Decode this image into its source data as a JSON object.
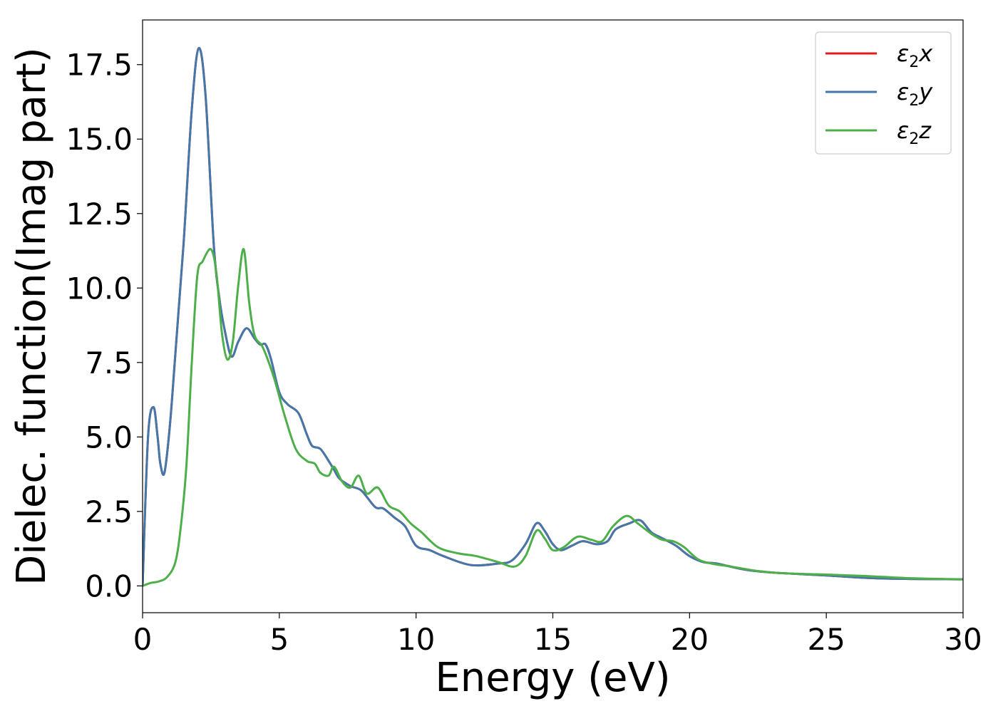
{
  "chart_data": {
    "type": "line",
    "title": "",
    "xlabel": "Energy (eV)",
    "ylabel": "Dielec. function(Imag part)",
    "xlim": [
      0,
      30
    ],
    "ylim": [
      -0.9,
      19.0
    ],
    "xticks": [
      0,
      5,
      10,
      15,
      20,
      25,
      30
    ],
    "xtick_labels": [
      "0",
      "5",
      "10",
      "15",
      "20",
      "25",
      "30"
    ],
    "yticks": [
      0.0,
      2.5,
      5.0,
      7.5,
      10.0,
      12.5,
      15.0,
      17.5
    ],
    "ytick_labels": [
      "0.0",
      "2.5",
      "5.0",
      "7.5",
      "10.0",
      "12.5",
      "15.0",
      "17.5"
    ],
    "grid": false,
    "legend_position": "top-right",
    "series": [
      {
        "name": "ε₂x",
        "legend_base": "ε",
        "legend_sub": "2",
        "legend_tail": "x",
        "color": "#e41a1c",
        "x": [
          0.0,
          0.2,
          0.4,
          0.55,
          0.65,
          0.8,
          1.0,
          1.2,
          1.5,
          1.8,
          2.05,
          2.3,
          2.6,
          2.8,
          3.0,
          3.25,
          3.5,
          3.8,
          4.1,
          4.3,
          4.5,
          4.7,
          5.0,
          5.3,
          5.7,
          6.0,
          6.2,
          6.5,
          6.8,
          7.0,
          7.2,
          7.6,
          8.0,
          8.5,
          8.8,
          9.2,
          9.6,
          10.0,
          10.5,
          11.0,
          12.0,
          13.0,
          13.5,
          14.0,
          14.4,
          14.7,
          15.0,
          15.3,
          15.7,
          16.1,
          16.6,
          17.0,
          17.3,
          17.8,
          18.2,
          18.6,
          19.0,
          19.5,
          20.0,
          20.5,
          21.0,
          22.0,
          23.0,
          25.0,
          27.0,
          30.0
        ],
        "y": [
          0.0,
          5.0,
          6.0,
          5.0,
          4.1,
          3.8,
          5.4,
          7.8,
          11.5,
          16.0,
          18.05,
          16.5,
          11.5,
          9.7,
          8.6,
          7.7,
          8.2,
          8.65,
          8.3,
          8.1,
          8.1,
          7.6,
          6.5,
          6.1,
          5.8,
          5.1,
          4.7,
          4.6,
          4.2,
          3.9,
          3.6,
          3.35,
          3.2,
          2.65,
          2.6,
          2.3,
          2.0,
          1.35,
          1.2,
          1.0,
          0.7,
          0.75,
          0.85,
          1.4,
          2.1,
          1.85,
          1.4,
          1.2,
          1.35,
          1.5,
          1.4,
          1.5,
          1.9,
          2.1,
          2.2,
          1.8,
          1.6,
          1.35,
          1.0,
          0.8,
          0.75,
          0.55,
          0.45,
          0.35,
          0.25,
          0.22
        ]
      },
      {
        "name": "ε₂y",
        "legend_base": "ε",
        "legend_sub": "2",
        "legend_tail": "y",
        "color": "#4477aa",
        "x": [
          0.0,
          0.2,
          0.4,
          0.55,
          0.65,
          0.8,
          1.0,
          1.2,
          1.5,
          1.8,
          2.05,
          2.3,
          2.6,
          2.8,
          3.0,
          3.25,
          3.5,
          3.8,
          4.1,
          4.3,
          4.5,
          4.7,
          5.0,
          5.3,
          5.7,
          6.0,
          6.2,
          6.5,
          6.8,
          7.0,
          7.2,
          7.6,
          8.0,
          8.5,
          8.8,
          9.2,
          9.6,
          10.0,
          10.5,
          11.0,
          12.0,
          13.0,
          13.5,
          14.0,
          14.4,
          14.7,
          15.0,
          15.3,
          15.7,
          16.1,
          16.6,
          17.0,
          17.3,
          17.8,
          18.2,
          18.6,
          19.0,
          19.5,
          20.0,
          20.5,
          21.0,
          22.0,
          23.0,
          25.0,
          27.0,
          30.0
        ],
        "y": [
          0.0,
          5.0,
          6.0,
          5.0,
          4.1,
          3.8,
          5.4,
          7.8,
          11.5,
          16.0,
          18.05,
          16.5,
          11.5,
          9.7,
          8.6,
          7.7,
          8.2,
          8.65,
          8.3,
          8.1,
          8.1,
          7.6,
          6.5,
          6.1,
          5.8,
          5.1,
          4.7,
          4.6,
          4.2,
          3.9,
          3.6,
          3.35,
          3.2,
          2.65,
          2.6,
          2.3,
          2.0,
          1.35,
          1.2,
          1.0,
          0.7,
          0.75,
          0.85,
          1.4,
          2.1,
          1.85,
          1.4,
          1.2,
          1.35,
          1.5,
          1.4,
          1.5,
          1.9,
          2.1,
          2.2,
          1.8,
          1.6,
          1.35,
          1.0,
          0.8,
          0.75,
          0.55,
          0.45,
          0.35,
          0.25,
          0.22
        ]
      },
      {
        "name": "ε₂z",
        "legend_base": "ε",
        "legend_sub": "2",
        "legend_tail": "z",
        "color": "#4daf4a",
        "x": [
          0.0,
          0.3,
          0.6,
          0.9,
          1.2,
          1.4,
          1.6,
          1.8,
          2.0,
          2.2,
          2.5,
          2.7,
          2.9,
          3.1,
          3.3,
          3.5,
          3.7,
          3.9,
          4.1,
          4.4,
          4.8,
          5.2,
          5.6,
          6.0,
          6.3,
          6.5,
          6.8,
          7.0,
          7.3,
          7.6,
          7.9,
          8.2,
          8.6,
          9.0,
          9.4,
          9.8,
          10.2,
          10.8,
          11.5,
          12.2,
          13.0,
          13.6,
          14.0,
          14.4,
          14.7,
          15.0,
          15.4,
          15.9,
          16.4,
          16.8,
          17.2,
          17.7,
          18.1,
          18.6,
          19.0,
          19.4,
          19.8,
          20.3,
          20.8,
          21.5,
          22.5,
          23.5,
          25.0,
          26.5,
          28.0,
          30.0
        ],
        "y": [
          0.0,
          0.1,
          0.15,
          0.3,
          0.8,
          2.0,
          4.0,
          7.5,
          10.4,
          10.9,
          11.3,
          10.5,
          8.5,
          7.6,
          8.2,
          10.1,
          11.3,
          9.5,
          8.4,
          8.0,
          7.0,
          5.7,
          4.6,
          4.2,
          4.1,
          3.8,
          3.7,
          4.0,
          3.5,
          3.3,
          3.7,
          3.1,
          3.3,
          2.7,
          2.5,
          2.1,
          1.8,
          1.3,
          1.1,
          1.0,
          0.8,
          0.65,
          1.0,
          1.85,
          1.6,
          1.2,
          1.3,
          1.65,
          1.55,
          1.5,
          2.0,
          2.35,
          2.1,
          1.75,
          1.55,
          1.5,
          1.3,
          0.9,
          0.75,
          0.65,
          0.5,
          0.42,
          0.38,
          0.33,
          0.26,
          0.22
        ]
      }
    ]
  }
}
